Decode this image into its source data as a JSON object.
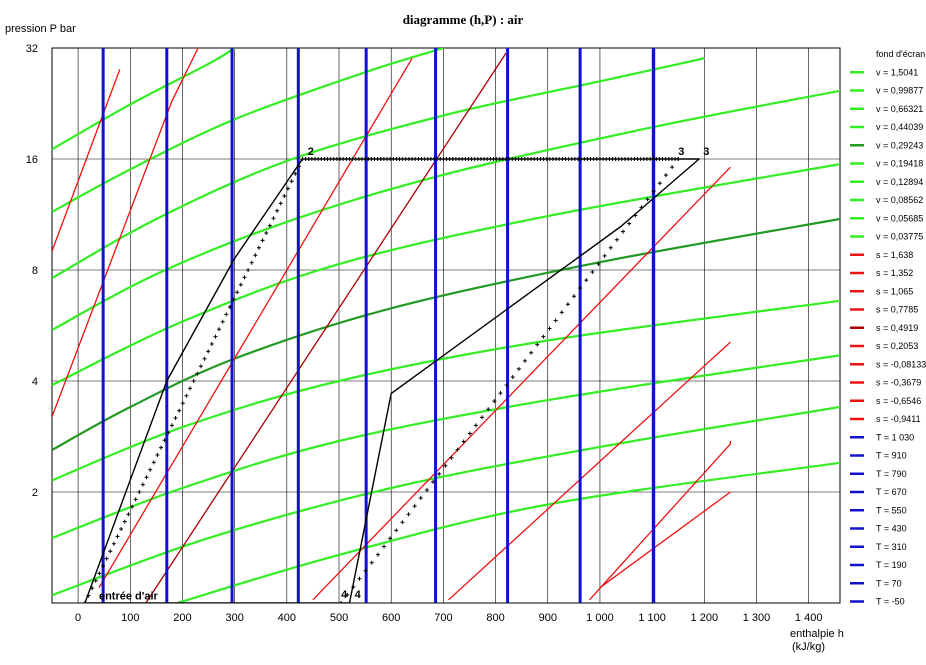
{
  "chart_data": {
    "type": "line",
    "title": "diagramme (h,P) : air",
    "xlabel": "enthalpie  h",
    "xunit": "(kJ/kg)",
    "ylabel": "pression  P bar",
    "xlim": [
      -50,
      1460
    ],
    "ylim_log2": [
      1,
      32
    ],
    "x_ticks": [
      0,
      100,
      200,
      300,
      400,
      500,
      600,
      700,
      800,
      900,
      1000,
      1100,
      1200,
      1300,
      1400
    ],
    "x_tick_labels": [
      "0",
      "100",
      "200",
      "300",
      "400",
      "500",
      "600",
      "700",
      "800",
      "900",
      "1 000",
      "1 100",
      "1 200",
      "1 300",
      "1 400"
    ],
    "y_ticks": [
      2,
      4,
      8,
      16,
      32
    ],
    "y_tick_labels": [
      "2",
      "4",
      "8",
      "16",
      "32"
    ],
    "grid": true,
    "legend_position": "right",
    "legend": [
      {
        "label": "fond d'écran",
        "color": ""
      },
      {
        "label": "v = 1,5041",
        "color": "#33ee22"
      },
      {
        "label": "v = 0,99877",
        "color": "#33ee22"
      },
      {
        "label": "v = 0,66321",
        "color": "#33ee22"
      },
      {
        "label": "v = 0,44039",
        "color": "#33ee22"
      },
      {
        "label": "v = 0,29243",
        "color": "#229922"
      },
      {
        "label": "v = 0,19418",
        "color": "#33ee22"
      },
      {
        "label": "v = 0,12894",
        "color": "#33ee22"
      },
      {
        "label": "v = 0,08562",
        "color": "#33ee22"
      },
      {
        "label": "v = 0,05685",
        "color": "#33ee22"
      },
      {
        "label": "v = 0,03775",
        "color": "#33ee22"
      },
      {
        "label": "s = 1,638",
        "color": "#ee1111"
      },
      {
        "label": "s = 1,352",
        "color": "#ee1111"
      },
      {
        "label": "s = 1,065",
        "color": "#ee1111"
      },
      {
        "label": "s = 0,7785",
        "color": "#ee1111"
      },
      {
        "label": "s = 0,4919",
        "color": "#aa0000"
      },
      {
        "label": "s = 0,2053",
        "color": "#ee1111"
      },
      {
        "label": "s = -0,08133",
        "color": "#ee1111"
      },
      {
        "label": "s = -0,3679",
        "color": "#ee1111"
      },
      {
        "label": "s = -0,6546",
        "color": "#ee1111"
      },
      {
        "label": "s = -0,9411",
        "color": "#ee1111"
      },
      {
        "label": "T = 1 030",
        "color": "#1111cc"
      },
      {
        "label": "T = 910",
        "color": "#1111cc"
      },
      {
        "label": "T = 790",
        "color": "#1111cc"
      },
      {
        "label": "T = 670",
        "color": "#1111cc"
      },
      {
        "label": "T = 550",
        "color": "#1111cc"
      },
      {
        "label": "T = 430",
        "color": "#1111cc"
      },
      {
        "label": "T = 310",
        "color": "#1111cc"
      },
      {
        "label": "T = 190",
        "color": "#1111cc"
      },
      {
        "label": "T = 70",
        "color": "#1111cc"
      },
      {
        "label": "T = -50",
        "color": "#1111cc"
      }
    ],
    "isotherms_h": [
      1103,
      962,
      823,
      685,
      552,
      422,
      295,
      170,
      48
    ],
    "isochores": [
      {
        "name": "v = 1,5041",
        "color": "#33ee22",
        "points": [
          [
            190,
            1
          ],
          [
            500,
            1.35
          ],
          [
            900,
            1.85
          ],
          [
            1460,
            2.4
          ]
        ]
      },
      {
        "name": "v = 0,99877",
        "color": "#33ee22",
        "points": [
          [
            -50,
            1.05
          ],
          [
            250,
            1.5
          ],
          [
            600,
            2.05
          ],
          [
            1000,
            2.65
          ],
          [
            1460,
            3.4
          ]
        ]
      },
      {
        "name": "v = 0,66321",
        "color": "#33ee22",
        "points": [
          [
            -50,
            1.5
          ],
          [
            200,
            2.05
          ],
          [
            500,
            2.75
          ],
          [
            900,
            3.55
          ],
          [
            1460,
            4.7
          ]
        ]
      },
      {
        "name": "v = 0,44039",
        "color": "#33ee22",
        "points": [
          [
            -50,
            2.15
          ],
          [
            200,
            3.0
          ],
          [
            500,
            4.0
          ],
          [
            900,
            5.15
          ],
          [
            1460,
            6.6
          ]
        ]
      },
      {
        "name": "v = 0,29243",
        "color": "#229922",
        "points": [
          [
            -50,
            2.6
          ],
          [
            100,
            3.4
          ],
          [
            300,
            4.6
          ],
          [
            600,
            6.3
          ],
          [
            1000,
            8.4
          ],
          [
            1460,
            11.0
          ]
        ]
      },
      {
        "name": "v = 0,19418",
        "color": "#33ee22",
        "points": [
          [
            -50,
            3.9
          ],
          [
            200,
            5.8
          ],
          [
            500,
            8.3
          ],
          [
            900,
            11.2
          ],
          [
            1460,
            15.5
          ]
        ]
      },
      {
        "name": "v = 0,12894",
        "color": "#33ee22",
        "points": [
          [
            -50,
            5.5
          ],
          [
            150,
            7.8
          ],
          [
            400,
            10.8
          ],
          [
            700,
            14.5
          ],
          [
            1100,
            19.5
          ],
          [
            1460,
            24.5
          ]
        ]
      },
      {
        "name": "v = 0,08562",
        "color": "#33ee22",
        "points": [
          [
            -50,
            7.6
          ],
          [
            150,
            11.0
          ],
          [
            400,
            15.8
          ],
          [
            700,
            21.0
          ],
          [
            1000,
            26.0
          ],
          [
            1200,
            30.0
          ]
        ]
      },
      {
        "name": "v = 0,05685",
        "color": "#33ee22",
        "points": [
          [
            -50,
            11.5
          ],
          [
            100,
            15.0
          ],
          [
            300,
            20.5
          ],
          [
            550,
            27.5
          ],
          [
            700,
            32
          ]
        ]
      },
      {
        "name": "v = 0,03775",
        "color": "#33ee22",
        "points": [
          [
            -50,
            17.0
          ],
          [
            100,
            22.5
          ],
          [
            250,
            29.0
          ],
          [
            300,
            32
          ]
        ]
      }
    ],
    "isentropes": [
      {
        "name": "s = 1,638",
        "color": "#ee1111",
        "points": [
          [
            1000,
            1.1
          ],
          [
            1250,
            2.0
          ]
        ]
      },
      {
        "name": "s = 1,352",
        "color": "#ee1111",
        "points": [
          [
            980,
            1.02
          ],
          [
            1250,
            2.7
          ],
          [
            1250,
            2.75
          ]
        ]
      },
      {
        "name": "s = 1,065",
        "color": "#ee1111",
        "points": [
          [
            710,
            1.02
          ],
          [
            1250,
            5.1
          ]
        ]
      },
      {
        "name": "s = 0,7785",
        "color": "#ee1111",
        "points": [
          [
            450,
            1.02
          ],
          [
            1250,
            15.2
          ]
        ]
      },
      {
        "name": "s = 0,4919",
        "color": "#aa0000",
        "points": [
          [
            130,
            1.0
          ],
          [
            820,
            31
          ]
        ]
      },
      {
        "name": "s = 0,2053",
        "color": "#ee1111",
        "points": [
          [
            40,
            1.1
          ],
          [
            640,
            30
          ]
        ]
      },
      {
        "name": "s = -0,08133",
        "color": "#ee1111",
        "points": [
          [
            -50,
            3.2
          ],
          [
            100,
            11.6
          ],
          [
            180,
            23.0
          ],
          [
            230,
            32
          ]
        ]
      },
      {
        "name": "s = -0,3679",
        "color": "#ee1111",
        "points": [
          [
            -50,
            9.0
          ],
          [
            80,
            28.0
          ]
        ]
      },
      {
        "name": "s = -0,6546",
        "color": "#ee1111",
        "points": [
          [
            -50,
            1.0
          ]
        ]
      },
      {
        "name": "s = -0,9411",
        "color": "#ee1111",
        "points": [
          [
            -50,
            1.0
          ]
        ]
      }
    ],
    "cycle": {
      "color": "#000000",
      "points": [
        [
          13,
          1
        ],
        [
          170,
          4
        ],
        [
          300,
          8.6
        ],
        [
          430,
          16
        ],
        [
          1190,
          16
        ],
        [
          1040,
          10.5
        ],
        [
          600,
          3.7
        ],
        [
          520,
          1
        ],
        [
          13,
          1
        ]
      ],
      "labels": [
        {
          "text": "2",
          "h": 440,
          "p": 16.2
        },
        {
          "text": "3",
          "h": 1150,
          "p": 16.2
        },
        {
          "text": "3",
          "h": 1198,
          "p": 16.2
        },
        {
          "text": "4",
          "h": 504,
          "p": 1.02
        },
        {
          "text": "4",
          "h": 530,
          "p": 1.02
        },
        {
          "text": "entrée d'air",
          "h": 40,
          "p": 1.01
        }
      ]
    }
  }
}
